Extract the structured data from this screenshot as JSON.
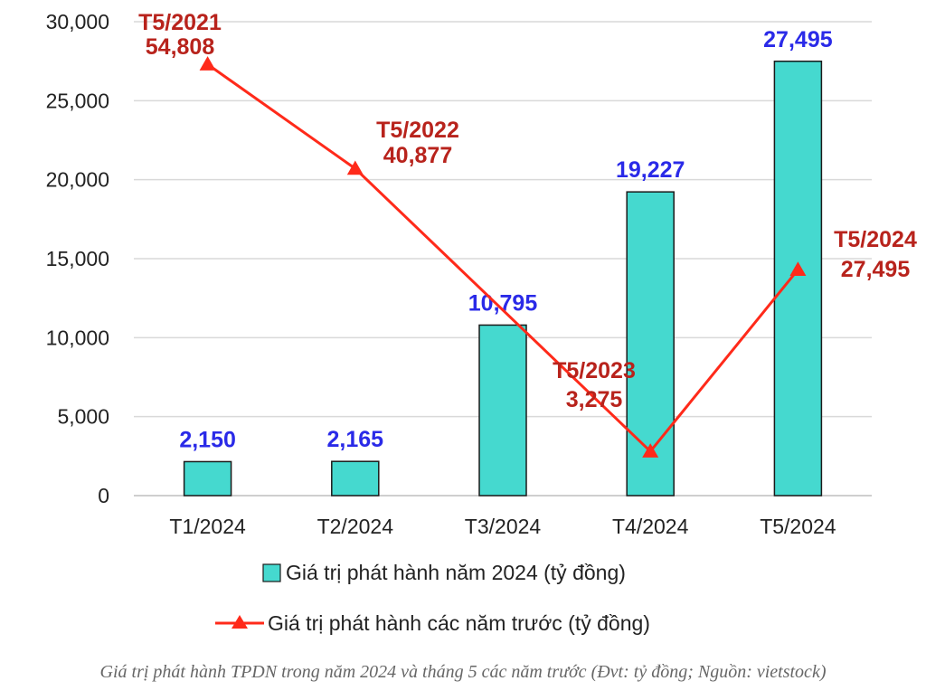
{
  "chart_data": {
    "type": "bar",
    "categories": [
      "T1/2024",
      "T2/2024",
      "T3/2024",
      "T4/2024",
      "T5/2024"
    ],
    "ylim": [
      0,
      30000
    ],
    "yticks": [
      0,
      5000,
      10000,
      15000,
      20000,
      25000,
      30000
    ],
    "ytick_labels": [
      "0",
      "5,000",
      "10,000",
      "15,000",
      "20,000",
      "25,000",
      "30,000"
    ],
    "grid": true,
    "legend_position": "bottom",
    "series": [
      {
        "name": "Giá trị phát hành năm 2024 (tỷ đồng)",
        "kind": "bar",
        "color": "#45d9cf",
        "values": [
          2150,
          2165,
          10795,
          19227,
          27495
        ],
        "labels": [
          "2,150",
          "2,165",
          "10,795",
          "19,227",
          "27,495"
        ]
      },
      {
        "name": "Giá trị phát hành các năm trước (tỷ đồng)",
        "kind": "line",
        "color": "#ff2a1a",
        "points": [
          {
            "x": "T1/2024",
            "y": 27300
          },
          {
            "x": "T2/2024",
            "y": 20700
          },
          {
            "x": "T4/2024",
            "y": 2800
          },
          {
            "x": "T5/2024",
            "y": 14300
          }
        ],
        "annotations": [
          {
            "period": "T5/2021",
            "value": "54,808"
          },
          {
            "period": "T5/2022",
            "value": "40,877"
          },
          {
            "period": "T5/2023",
            "value": "3,275"
          },
          {
            "period": "T5/2024",
            "value": "27,495"
          }
        ]
      }
    ]
  },
  "caption": "Giá trị phát hành TPDN trong năm 2024 và tháng 5 các năm trước (Đvt: tỷ đồng; Nguồn: vietstock)",
  "colors": {
    "bar_label": "#2a2ae8",
    "annotation": "#b8231c",
    "grid": "#d9d9d9"
  }
}
